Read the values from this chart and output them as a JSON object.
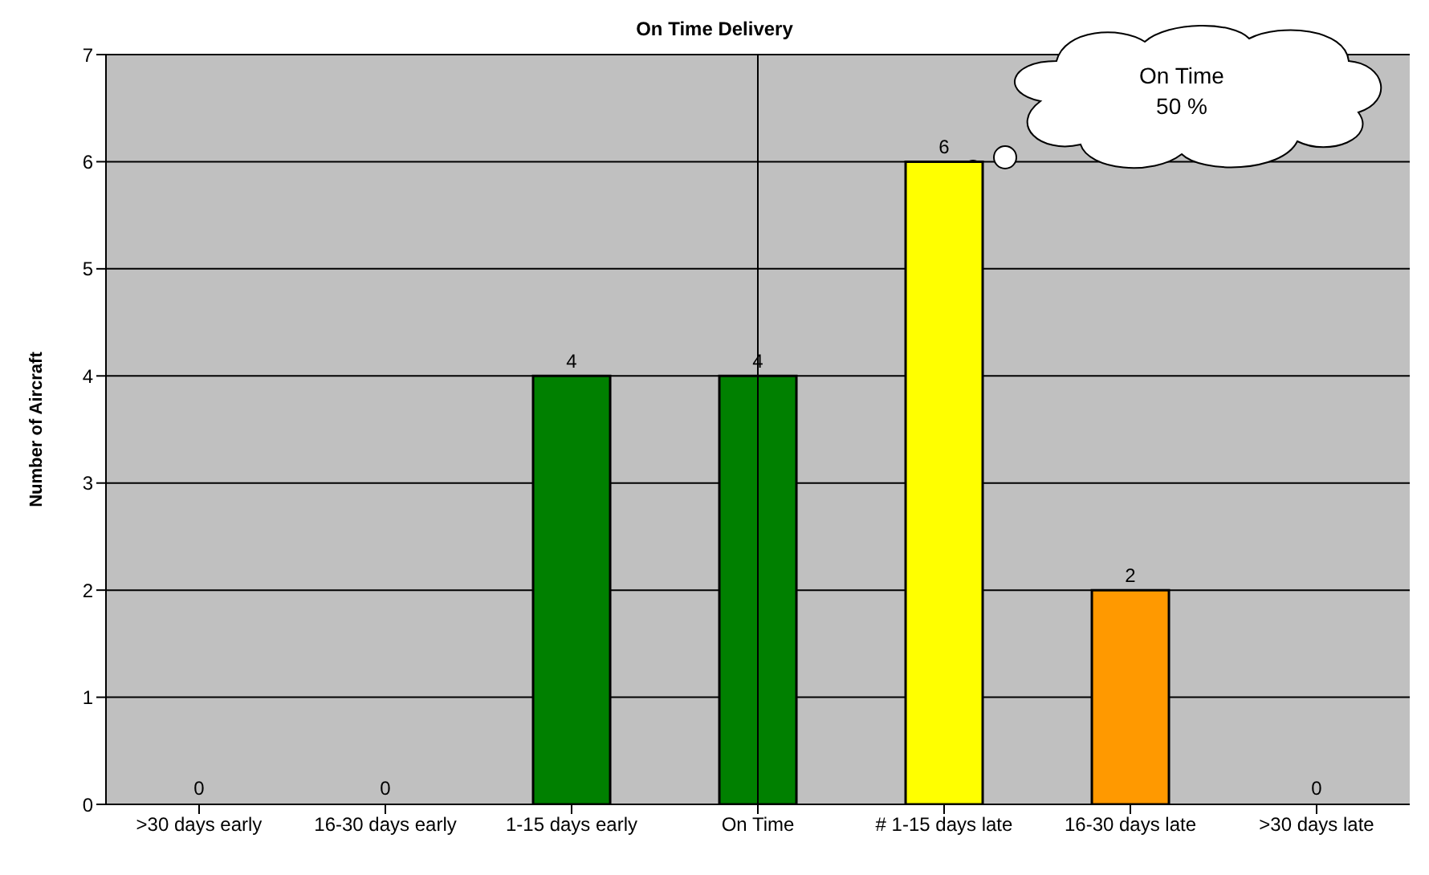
{
  "chart_data": {
    "type": "bar",
    "title": "On Time Delivery",
    "ylabel": "Number of Aircraft",
    "categories": [
      ">30 days early",
      "16-30 days early",
      "1-15 days early",
      "On Time",
      "# 1-15 days late",
      "16-30 days late",
      ">30 days late"
    ],
    "values": [
      0,
      0,
      4,
      4,
      6,
      2,
      0
    ],
    "colors": [
      null,
      null,
      "#008000",
      "#008000",
      "#ffff00",
      "#ff9900",
      null
    ],
    "ylim": [
      0,
      7
    ],
    "yticks": [
      0,
      1,
      2,
      3,
      4,
      5,
      6,
      7
    ],
    "grid": "y",
    "data_labels": true,
    "ref_lines": [
      {
        "axis": "x",
        "value": "On Time",
        "color": "#000000"
      }
    ],
    "annotations": [
      "On Time\n50 %"
    ]
  }
}
